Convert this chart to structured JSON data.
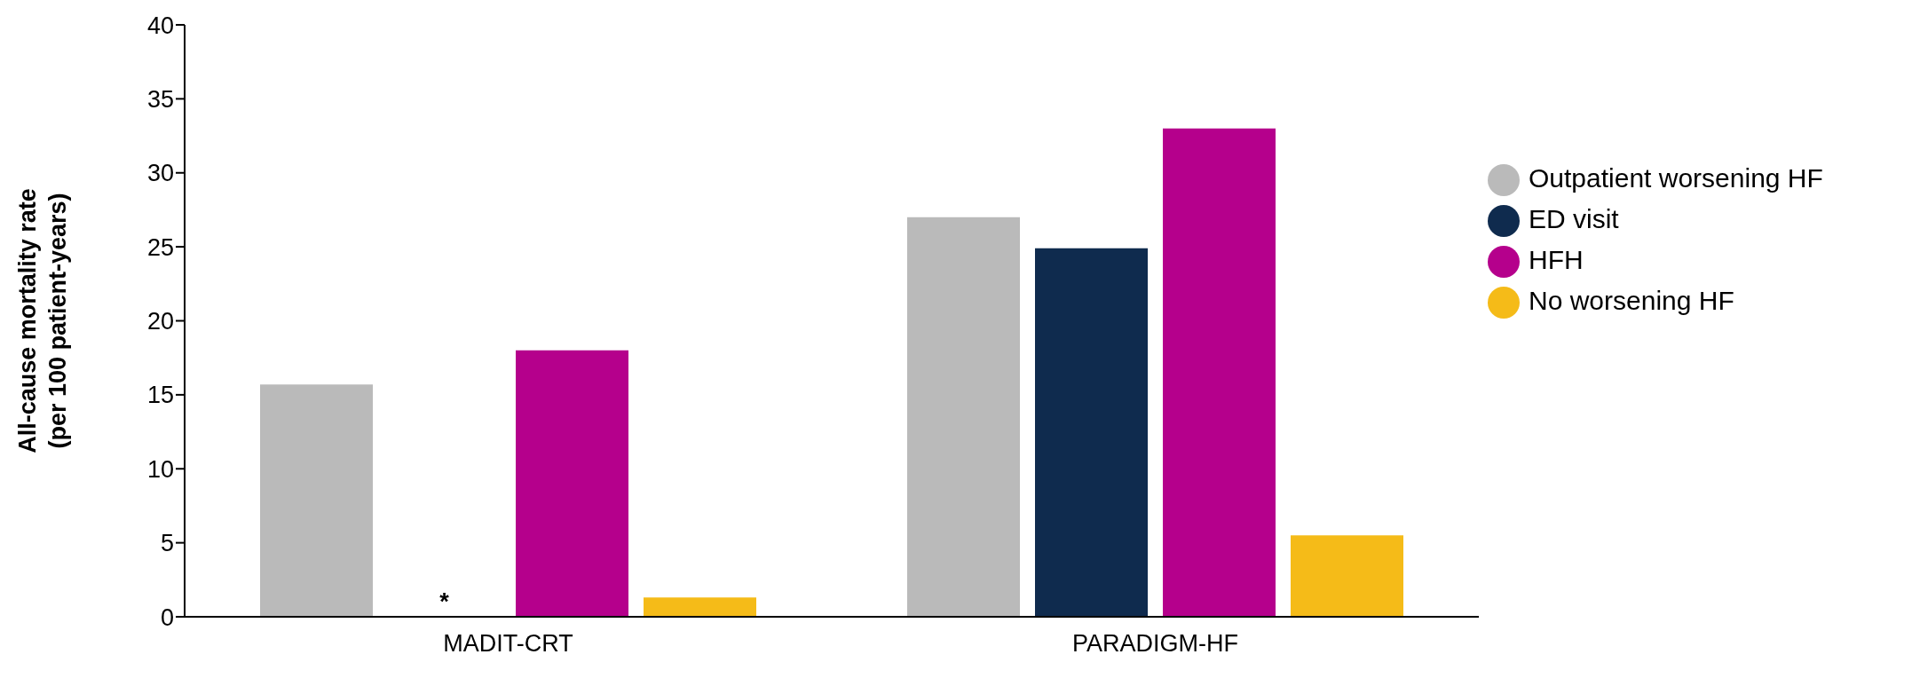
{
  "chart_data": {
    "type": "bar",
    "ylabel": "All-cause mortality rate\n(per 100 patient-years)",
    "categories": [
      "MADIT-CRT",
      "PARADIGM-HF"
    ],
    "series": [
      {
        "name": "Outpatient worsening HF",
        "color": "#bababa",
        "values": [
          15.7,
          27.0
        ]
      },
      {
        "name": "ED visit",
        "color": "#0f2b4e",
        "values": [
          null,
          24.9
        ]
      },
      {
        "name": "HFH",
        "color": "#b5008c",
        "values": [
          18.0,
          33.0
        ]
      },
      {
        "name": "No worsening HF",
        "color": "#f5bb18",
        "values": [
          1.3,
          5.5
        ]
      }
    ],
    "ylim": [
      0,
      40
    ],
    "yticks": [
      0,
      5,
      10,
      15,
      20,
      25,
      30,
      35,
      40
    ],
    "grid": false,
    "legend": "right",
    "annotations": [
      "*"
    ]
  }
}
